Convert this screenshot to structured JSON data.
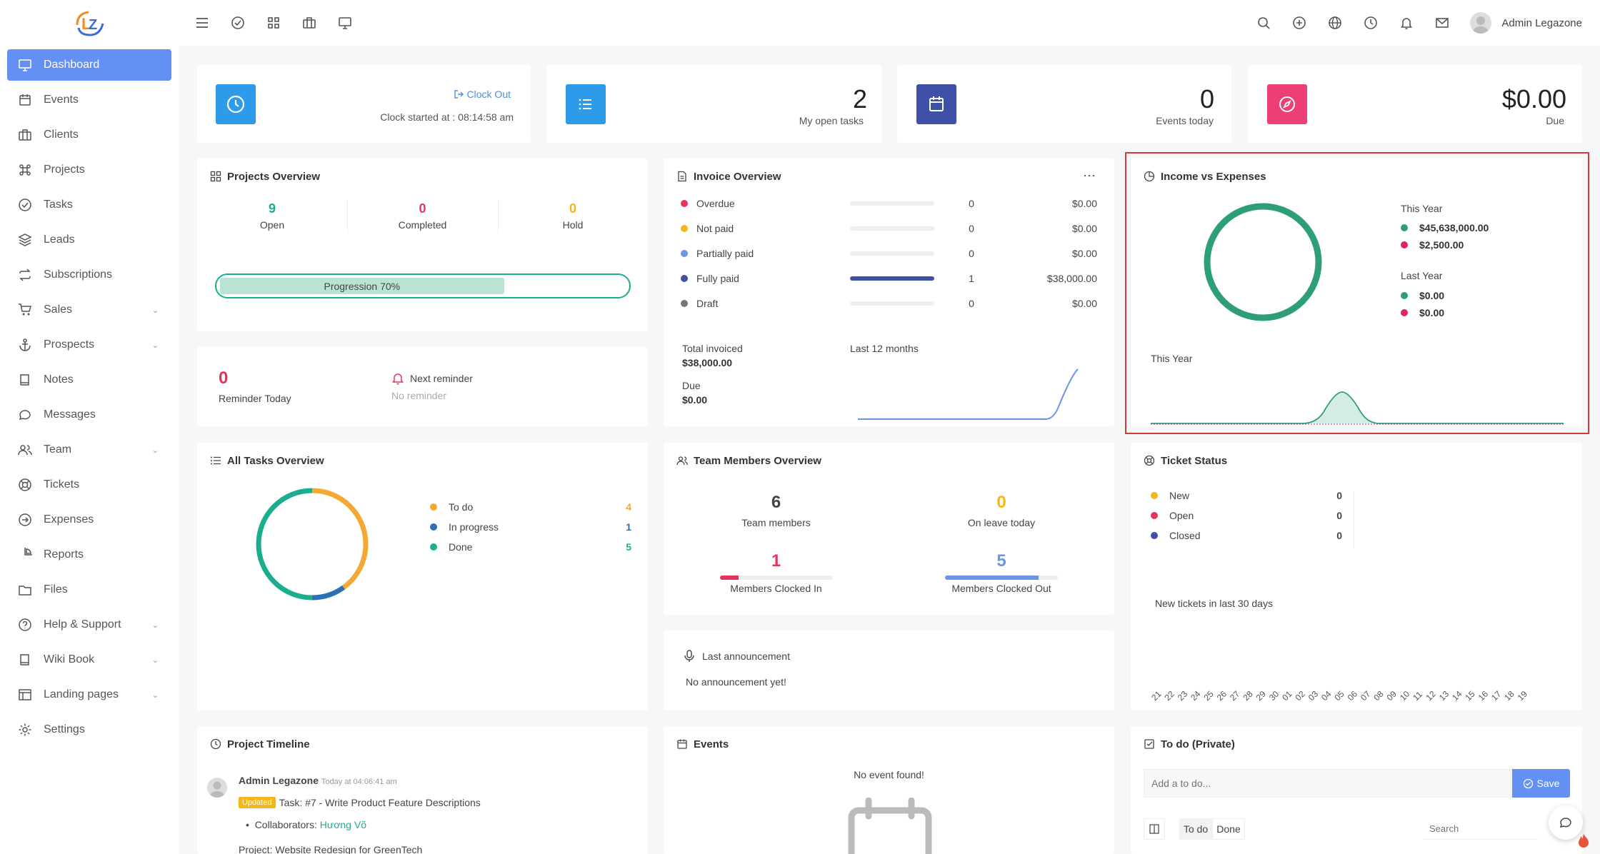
{
  "header": {
    "username": "Admin Legazone"
  },
  "sidebar": {
    "items": [
      {
        "label": "Dashboard"
      },
      {
        "label": "Events"
      },
      {
        "label": "Clients"
      },
      {
        "label": "Projects"
      },
      {
        "label": "Tasks"
      },
      {
        "label": "Leads"
      },
      {
        "label": "Subscriptions"
      },
      {
        "label": "Sales"
      },
      {
        "label": "Prospects"
      },
      {
        "label": "Notes"
      },
      {
        "label": "Messages"
      },
      {
        "label": "Team"
      },
      {
        "label": "Tickets"
      },
      {
        "label": "Expenses"
      },
      {
        "label": "Reports"
      },
      {
        "label": "Files"
      },
      {
        "label": "Help & Support"
      },
      {
        "label": "Wiki Book"
      },
      {
        "label": "Landing pages"
      },
      {
        "label": "Settings"
      }
    ]
  },
  "clock": {
    "action": "Clock Out",
    "started": "Clock started at : 08:14:58 am"
  },
  "open_tasks": {
    "value": "2",
    "label": "My open tasks"
  },
  "events_today": {
    "value": "0",
    "label": "Events today"
  },
  "due": {
    "value": "$0.00",
    "label": "Due"
  },
  "projects_overview": {
    "title": "Projects Overview",
    "open_value": "9",
    "open_label": "Open",
    "completed_value": "0",
    "completed_label": "Completed",
    "hold_value": "0",
    "hold_label": "Hold",
    "progress_label": "Progression 70%",
    "progress": 0.7
  },
  "reminder": {
    "today_value": "0",
    "today_label": "Reminder Today",
    "next_label": "Next reminder",
    "next_value": "No reminder"
  },
  "invoice": {
    "title": "Invoice Overview",
    "rows": [
      {
        "label": "Overdue",
        "count": "0",
        "amount": "$0.00",
        "color": "#e6335b",
        "fill": 0
      },
      {
        "label": "Not paid",
        "count": "0",
        "amount": "$0.00",
        "color": "#f5b618",
        "fill": 0
      },
      {
        "label": "Partially paid",
        "count": "0",
        "amount": "$0.00",
        "color": "#6e94e8",
        "fill": 0
      },
      {
        "label": "Fully paid",
        "count": "1",
        "amount": "$38,000.00",
        "color": "#3f51a6",
        "fill": 1
      },
      {
        "label": "Draft",
        "count": "0",
        "amount": "$0.00",
        "color": "#777777",
        "fill": 0
      }
    ],
    "total_label": "Total invoiced",
    "total_value": "$38,000.00",
    "due_label": "Due",
    "due_value": "$0.00",
    "chart_label": "Last 12 months"
  },
  "income": {
    "title": "Income vs Expenses",
    "this_year_label": "This Year",
    "this_income": "$45,638,000.00",
    "this_expense": "$2,500.00",
    "last_year_label": "Last Year",
    "last_income": "$0.00",
    "last_expense": "$0.00",
    "chart_label": "This Year",
    "income_color": "#2e9e7a",
    "expense_color": "#e0245e"
  },
  "tasks_overview": {
    "title": "All Tasks Overview",
    "items": [
      {
        "label": "To do",
        "value": "4",
        "color": "#f4a934"
      },
      {
        "label": "In progress",
        "value": "1",
        "color": "#2a6fb8"
      },
      {
        "label": "Done",
        "value": "5",
        "color": "#1aae8f"
      }
    ]
  },
  "team": {
    "title": "Team Members Overview",
    "members_value": "6",
    "members_label": "Team members",
    "leave_value": "0",
    "leave_label": "On leave today",
    "in_value": "1",
    "in_label": "Members Clocked In",
    "in_fraction": 0.17,
    "out_value": "5",
    "out_label": "Members Clocked Out",
    "out_fraction": 0.83
  },
  "announcement": {
    "title": "Last announcement",
    "text": "No announcement yet!"
  },
  "tickets": {
    "title": "Ticket Status",
    "items": [
      {
        "label": "New",
        "value": "0",
        "color": "#f5b618"
      },
      {
        "label": "Open",
        "value": "0",
        "color": "#e6335b"
      },
      {
        "label": "Closed",
        "value": "0",
        "color": "#3f51a6"
      }
    ],
    "chart_label": "New tickets in last 30 days",
    "days": [
      "21",
      "22",
      "23",
      "24",
      "25",
      "26",
      "27",
      "28",
      "29",
      "30",
      "01",
      "02",
      "03",
      "04",
      "05",
      "06",
      "07",
      "08",
      "09",
      "10",
      "11",
      "12",
      "13",
      "14",
      "15",
      "16",
      "17",
      "18",
      "19"
    ]
  },
  "timeline": {
    "title": "Project Timeline",
    "author": "Admin Legazone",
    "time": "Today at 04:06:41 am",
    "badge": "Updated",
    "task": "Task: #7 - Write Product Feature Descriptions",
    "collab_label": "Collaborators:",
    "collab_name": "Hương Võ",
    "project": "Project: Website Redesign for GreenTech"
  },
  "events": {
    "title": "Events",
    "empty": "No event found!"
  },
  "todo": {
    "title": "To do (Private)",
    "placeholder": "Add a to do...",
    "save": "Save",
    "tab_todo": "To do",
    "tab_done": "Done",
    "search": "Search"
  }
}
